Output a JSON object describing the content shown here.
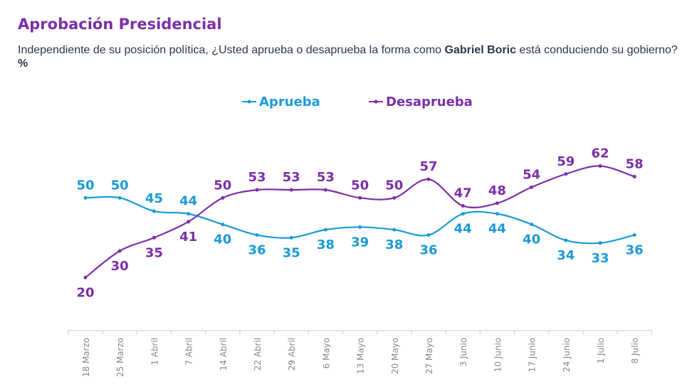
{
  "chart_data": {
    "type": "line",
    "title": "Aprobación Presidencial",
    "subtitle_parts": [
      "Independiente de su posición política, ¿Usted aprueba o desaprueba la forma como ",
      "Gabriel Boric",
      " está conduciendo su gobierno? ",
      "%"
    ],
    "categories": [
      "18 Marzo",
      "25 Marzo",
      "1 Abril",
      "7 Abril",
      "14 Abril",
      "22 Abril",
      "29 Abril",
      "6 Mayo",
      "13 Mayo",
      "20 Mayo",
      "27 Mayo",
      "3 Junio",
      "10 Junio",
      "17 Junio",
      "24 Junio",
      "1 Julio",
      "8 Julio"
    ],
    "series": [
      {
        "name": "Aprueba",
        "color": "#1a9ad6",
        "values": [
          50,
          50,
          45,
          44,
          40,
          36,
          35,
          38,
          39,
          38,
          36,
          44,
          44,
          40,
          34,
          33,
          36
        ]
      },
      {
        "name": "Desaprueba",
        "color": "#7b2fa8",
        "values": [
          20,
          30,
          35,
          41,
          50,
          53,
          53,
          53,
          50,
          50,
          57,
          47,
          48,
          54,
          59,
          62,
          58
        ]
      }
    ]
  }
}
